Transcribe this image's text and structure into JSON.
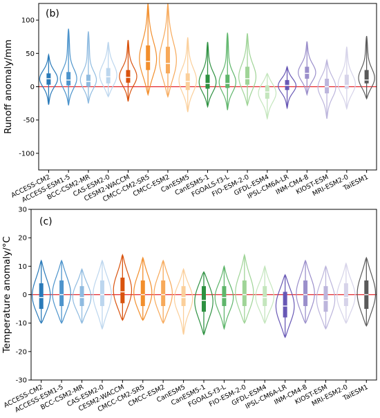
{
  "chart_data": [
    {
      "type": "violin",
      "panel_label": "(b)",
      "ylabel": "Runoff anomaly/mm",
      "ylim": [
        -125,
        125
      ],
      "yticks": [
        -100,
        -50,
        0,
        50,
        100
      ],
      "reference_line": {
        "y": 0,
        "color": "#e3242b"
      },
      "grid": false,
      "series": [
        {
          "name": "ACCESS-CM2",
          "color": "#2a7ab9",
          "min": -27,
          "q1": 3,
          "median": 12,
          "q3": 20,
          "max": 48
        },
        {
          "name": "ACCESS-ESM1-5",
          "color": "#4d94cc",
          "min": -28,
          "q1": 2,
          "median": 10,
          "q3": 22,
          "max": 87
        },
        {
          "name": "BCC-CSM2-MR",
          "color": "#8fbbe0",
          "min": -25,
          "q1": 0,
          "median": 8,
          "q3": 18,
          "max": 83
        },
        {
          "name": "CAS-ESM2-0",
          "color": "#bcd6ee",
          "min": -15,
          "q1": 5,
          "median": 15,
          "q3": 28,
          "max": 67
        },
        {
          "name": "CESM2-WACCM",
          "color": "#d9530e",
          "min": -22,
          "q1": 6,
          "median": 14,
          "q3": 25,
          "max": 70
        },
        {
          "name": "CMCC-CM2-SR5",
          "color": "#f28e2c",
          "min": -12,
          "q1": 25,
          "median": 38,
          "q3": 62,
          "max": 125
        },
        {
          "name": "CMCC-ESM2",
          "color": "#f7a95a",
          "min": -15,
          "q1": 20,
          "median": 35,
          "q3": 60,
          "max": 125
        },
        {
          "name": "CanESM5",
          "color": "#fbcf9a",
          "min": -38,
          "q1": -5,
          "median": 8,
          "q3": 20,
          "max": 74
        },
        {
          "name": "CanESM5-1",
          "color": "#2e9141",
          "min": -30,
          "q1": -3,
          "median": 5,
          "q3": 18,
          "max": 67
        },
        {
          "name": "FGOALS-f3-L",
          "color": "#5fb66b",
          "min": -35,
          "q1": -2,
          "median": 5,
          "q3": 18,
          "max": 81
        },
        {
          "name": "FIO-ESM-2-0",
          "color": "#9fd497",
          "min": -28,
          "q1": 3,
          "median": 12,
          "q3": 30,
          "max": 80
        },
        {
          "name": "GFDL-ESM4",
          "color": "#c4e6bd",
          "min": -48,
          "q1": -18,
          "median": -8,
          "q3": 2,
          "max": 20
        },
        {
          "name": "IPSL-CM6A-LR",
          "color": "#6858b5",
          "min": -32,
          "q1": -5,
          "median": 2,
          "q3": 10,
          "max": 30
        },
        {
          "name": "INM-CM4-8",
          "color": "#9b8fcb",
          "min": -12,
          "q1": 12,
          "median": 20,
          "q3": 30,
          "max": 68
        },
        {
          "name": "KIOST-ESM",
          "color": "#bcb5dc",
          "min": -48,
          "q1": -10,
          "median": 0,
          "q3": 12,
          "max": 40
        },
        {
          "name": "MRI-ESM2-0",
          "color": "#d6d3e9",
          "min": -33,
          "q1": -3,
          "median": 2,
          "q3": 18,
          "max": 60
        },
        {
          "name": "TaiESM1",
          "color": "#5a5a5a",
          "min": -18,
          "q1": 5,
          "median": 10,
          "q3": 25,
          "max": 76
        }
      ]
    },
    {
      "type": "violin",
      "panel_label": "(c)",
      "ylabel": "Temperature anomaly/°C",
      "ylim": [
        -30,
        30
      ],
      "yticks": [
        -30,
        -20,
        -10,
        0,
        10,
        20,
        30
      ],
      "reference_line": {
        "y": 0,
        "color": "#e3242b"
      },
      "grid": false,
      "series": [
        {
          "name": "ACCESS-CM2",
          "color": "#2a7ab9",
          "min": -10,
          "q1": -5,
          "median": -1,
          "q3": 4,
          "max": 12
        },
        {
          "name": "ACCESS-ESM1-5",
          "color": "#4d94cc",
          "min": -10,
          "q1": -4,
          "median": 0,
          "q3": 5,
          "max": 12
        },
        {
          "name": "BCC-CSM2-MR",
          "color": "#8fbbe0",
          "min": -10,
          "q1": -4,
          "median": -1,
          "q3": 3,
          "max": 9
        },
        {
          "name": "CAS-ESM2-0",
          "color": "#bcd6ee",
          "min": -12,
          "q1": -4,
          "median": 0,
          "q3": 5,
          "max": 12
        },
        {
          "name": "CESM2-WACCM",
          "color": "#d9530e",
          "min": -9,
          "q1": -3,
          "median": 1,
          "q3": 6,
          "max": 14
        },
        {
          "name": "CMCC-CM2-SR5",
          "color": "#f28e2c",
          "min": -9,
          "q1": -4,
          "median": 0,
          "q3": 5,
          "max": 13
        },
        {
          "name": "CMCC-ESM2",
          "color": "#f7a95a",
          "min": -10,
          "q1": -4,
          "median": 0,
          "q3": 5,
          "max": 12
        },
        {
          "name": "CanESM5",
          "color": "#fbcf9a",
          "min": -14,
          "q1": -4,
          "median": -1,
          "q3": 3,
          "max": 9
        },
        {
          "name": "CanESM5-1",
          "color": "#2e9141",
          "min": -14,
          "q1": -6,
          "median": -2,
          "q3": 3,
          "max": 8
        },
        {
          "name": "FGOALS-f3-L",
          "color": "#5fb66b",
          "min": -12,
          "q1": -4,
          "median": -1,
          "q3": 3,
          "max": 10
        },
        {
          "name": "FIO-ESM-2-0",
          "color": "#9fd497",
          "min": -10,
          "q1": -4,
          "median": 0,
          "q3": 5,
          "max": 14
        },
        {
          "name": "GFDL-ESM4",
          "color": "#c4e6bd",
          "min": -10,
          "q1": -4,
          "median": -1,
          "q3": 3,
          "max": 10
        },
        {
          "name": "IPSL-CM6A-LR",
          "color": "#6858b5",
          "min": -15,
          "q1": -8,
          "median": -4,
          "q3": 1,
          "max": 7
        },
        {
          "name": "INM-CM4-8",
          "color": "#9b8fcb",
          "min": -10,
          "q1": -4,
          "median": 0,
          "q3": 5,
          "max": 12
        },
        {
          "name": "KIOST-ESM",
          "color": "#bcb5dc",
          "min": -12,
          "q1": -6,
          "median": -2,
          "q3": 3,
          "max": 10
        },
        {
          "name": "MRI-ESM2-0",
          "color": "#d6d3e9",
          "min": -10,
          "q1": -4,
          "median": -1,
          "q3": 4,
          "max": 11
        },
        {
          "name": "TaiESM1",
          "color": "#5a5a5a",
          "min": -11,
          "q1": -5,
          "median": 0,
          "q3": 5,
          "max": 13
        }
      ]
    }
  ]
}
